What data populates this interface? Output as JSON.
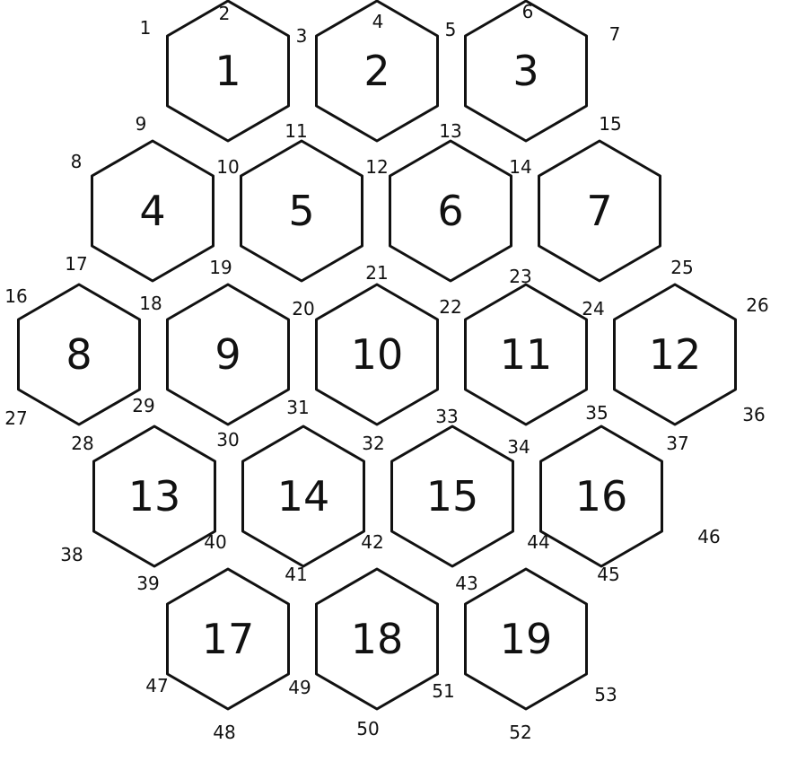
{
  "diagram": {
    "title": "hexagon-grid",
    "colors": {
      "line": "#111111",
      "fill": "#ffffff",
      "background": "#ffffff"
    },
    "hexes": [
      {
        "label": "1",
        "row": 0,
        "col": 0
      },
      {
        "label": "2",
        "row": 0,
        "col": 1
      },
      {
        "label": "3",
        "row": 0,
        "col": 2
      },
      {
        "label": "4",
        "row": 1,
        "col": 0
      },
      {
        "label": "5",
        "row": 1,
        "col": 1
      },
      {
        "label": "6",
        "row": 1,
        "col": 2
      },
      {
        "label": "7",
        "row": 1,
        "col": 3
      },
      {
        "label": "8",
        "row": 2,
        "col": 0
      },
      {
        "label": "9",
        "row": 2,
        "col": 1
      },
      {
        "label": "10",
        "row": 2,
        "col": 2
      },
      {
        "label": "11",
        "row": 2,
        "col": 3
      },
      {
        "label": "12",
        "row": 2,
        "col": 4
      },
      {
        "label": "13",
        "row": 3,
        "col": 0
      },
      {
        "label": "14",
        "row": 3,
        "col": 1
      },
      {
        "label": "15",
        "row": 3,
        "col": 2
      },
      {
        "label": "16",
        "row": 3,
        "col": 3
      },
      {
        "label": "17",
        "row": 4,
        "col": 0
      },
      {
        "label": "18",
        "row": 4,
        "col": 1
      },
      {
        "label": "19",
        "row": 4,
        "col": 2
      }
    ],
    "vertex_labels": [
      "1",
      "2",
      "3",
      "4",
      "5",
      "6",
      "7",
      "8",
      "9",
      "10",
      "11",
      "12",
      "13",
      "14",
      "15",
      "16",
      "17",
      "18",
      "19",
      "20",
      "21",
      "22",
      "23",
      "24",
      "25",
      "26",
      "27",
      "28",
      "29",
      "30",
      "31",
      "32",
      "33",
      "34",
      "35",
      "36",
      "37",
      "38",
      "39",
      "40",
      "41",
      "42",
      "43",
      "44",
      "45",
      "46",
      "47",
      "48",
      "49",
      "50",
      "51",
      "52",
      "53"
    ]
  }
}
